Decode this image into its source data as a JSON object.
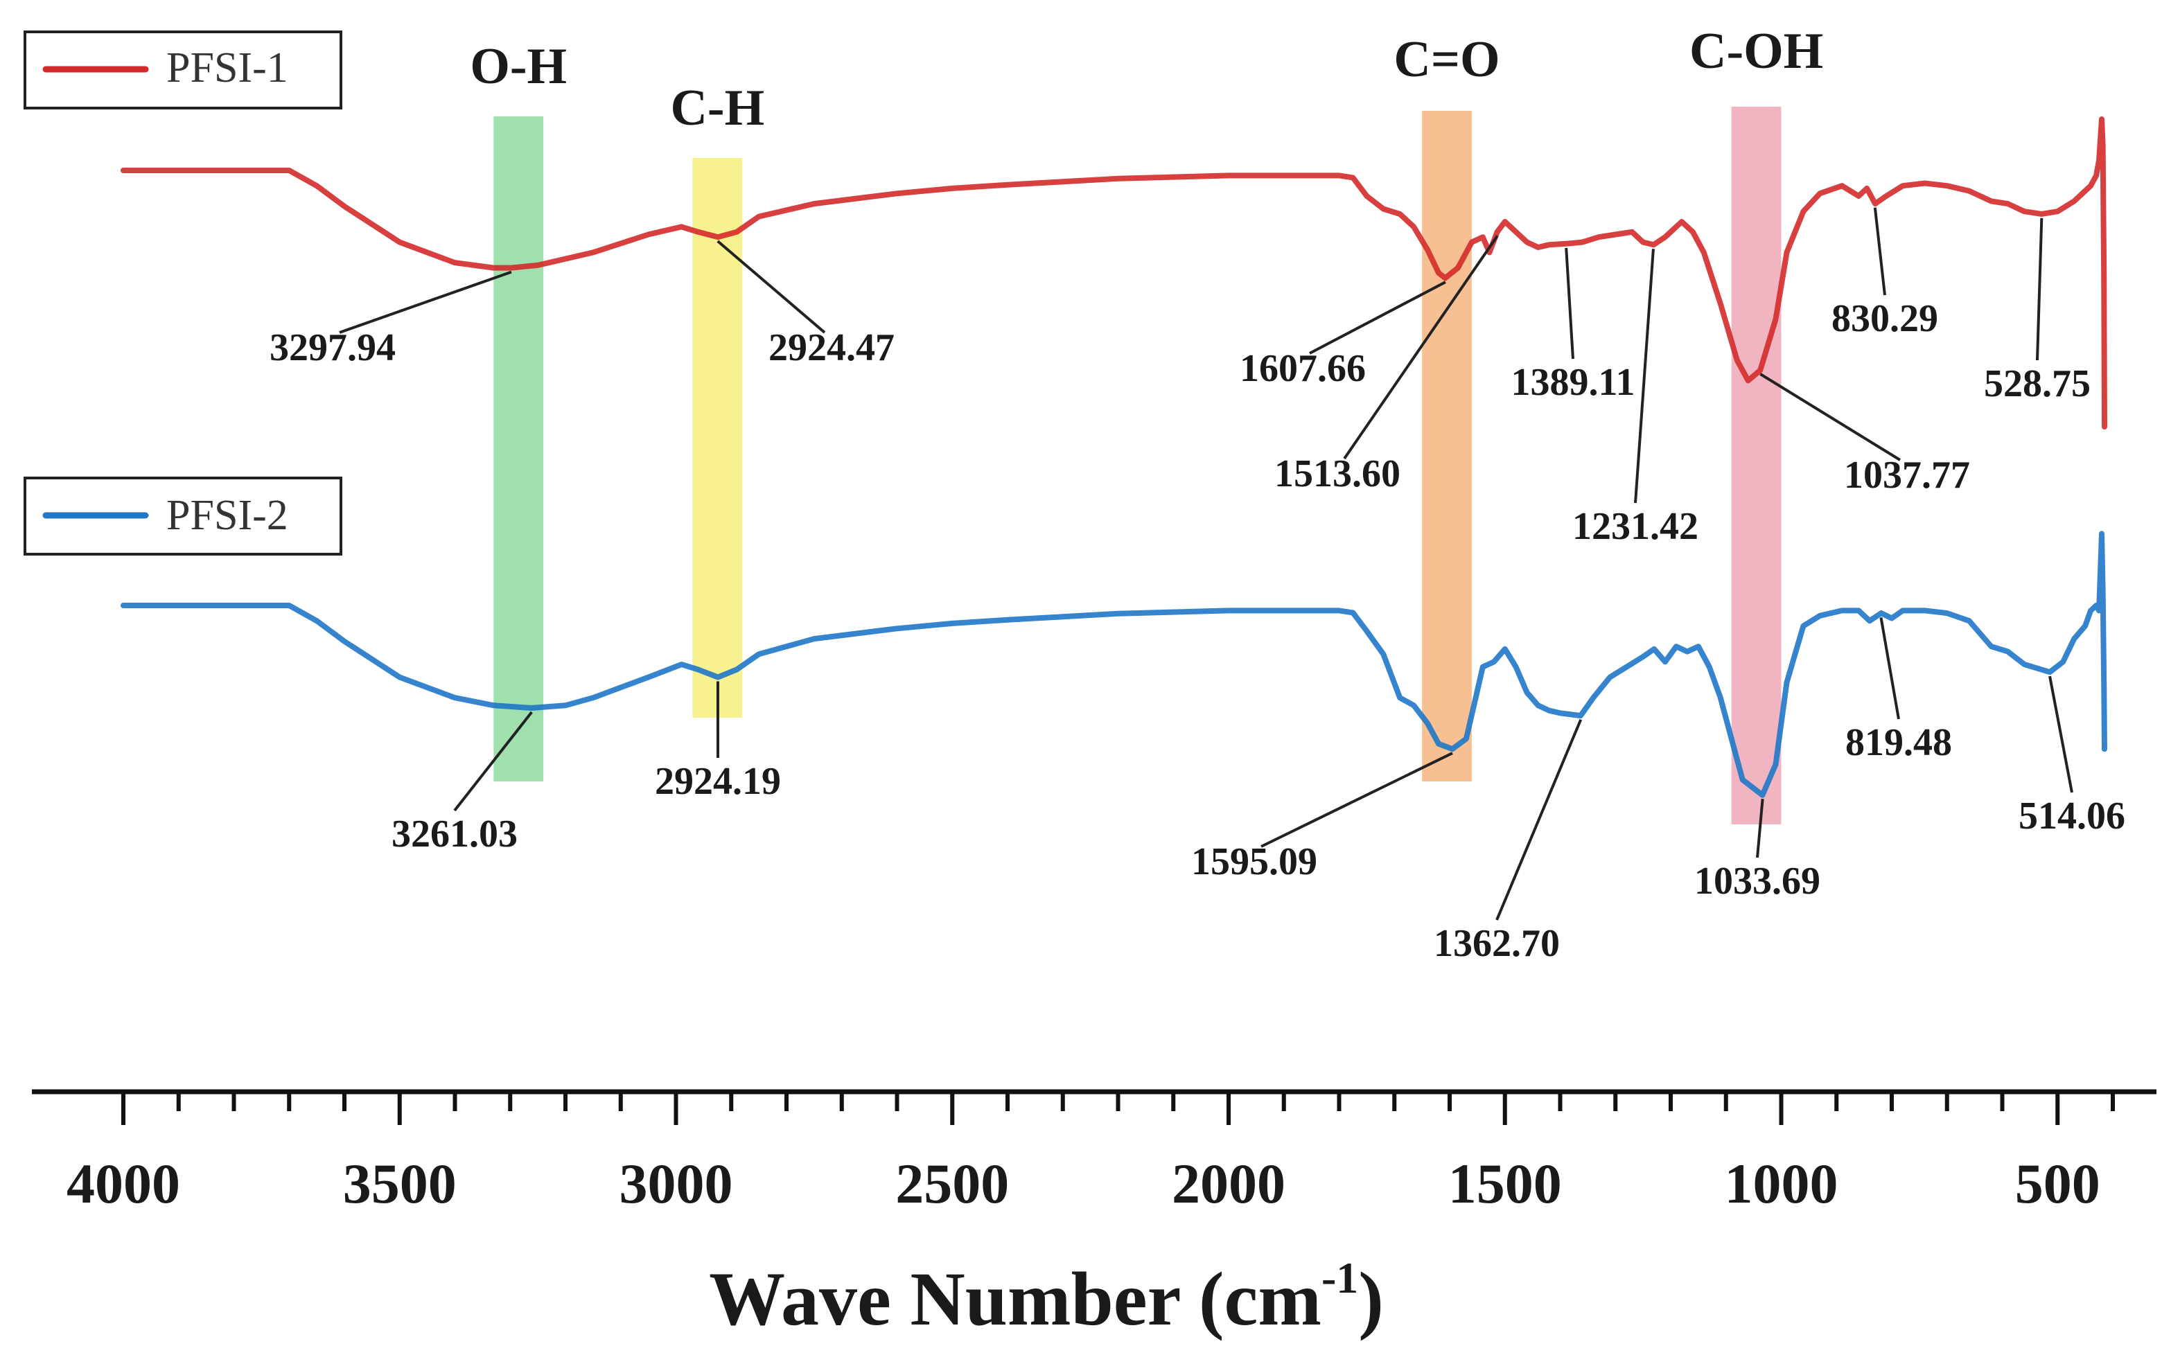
{
  "chart_data": {
    "type": "line",
    "title": "",
    "xlabel": "Wave Number (cm",
    "xlabel_sup": "-1",
    "xlabel_close": ")",
    "ylabel": "",
    "xlim": [
      4000,
      400
    ],
    "x_reversed": true,
    "grid": false,
    "x_ticks": [
      "4000",
      "3500",
      "3000",
      "2500",
      "2000",
      "1500",
      "1000",
      "500"
    ],
    "x_tick_values": [
      4000,
      3500,
      3000,
      2500,
      2000,
      1500,
      1000,
      500
    ],
    "legend_position": "top-left (one per trace)",
    "bands": [
      {
        "label": "O-H",
        "from": 3330,
        "to": 3240,
        "color": "#8fd9a0"
      },
      {
        "label": "C-H",
        "from": 2970,
        "to": 2880,
        "color": "#f6ee7c"
      },
      {
        "label": "C=O",
        "from": 1650,
        "to": 1560,
        "color": "#f4b57f"
      },
      {
        "label": "C-OH",
        "from": 1090,
        "to": 1000,
        "color": "#eda8b6"
      }
    ],
    "series": [
      {
        "name": "PFSI-1",
        "color": "#d42a2a",
        "baseline_offset": 0,
        "x": [
          4000,
          3700,
          3650,
          3600,
          3500,
          3400,
          3330,
          3298,
          3250,
          3150,
          3050,
          2990,
          2960,
          2924,
          2890,
          2850,
          2750,
          2600,
          2500,
          2400,
          2300,
          2200,
          2000,
          1800,
          1775,
          1750,
          1720,
          1690,
          1665,
          1640,
          1620,
          1608,
          1585,
          1560,
          1540,
          1528,
          1514,
          1500,
          1480,
          1460,
          1440,
          1420,
          1389,
          1360,
          1330,
          1300,
          1270,
          1250,
          1231,
          1210,
          1180,
          1160,
          1140,
          1110,
          1080,
          1060,
          1038,
          1010,
          990,
          960,
          930,
          890,
          860,
          845,
          830,
          810,
          780,
          740,
          700,
          660,
          620,
          590,
          560,
          529,
          500,
          470,
          450,
          440,
          430,
          425,
          420,
          418,
          416,
          415
        ],
        "y": [
          100,
          100,
          97,
          93,
          86,
          82,
          81,
          81,
          81.5,
          84,
          87.5,
          89,
          88,
          87,
          88,
          91,
          93.5,
          95.5,
          96.5,
          97.2,
          97.8,
          98.4,
          99,
          99,
          98.6,
          95,
          92.5,
          91.5,
          89,
          84.5,
          80,
          79,
          81,
          86,
          87,
          84,
          88,
          90,
          88,
          86,
          85,
          85.5,
          85.7,
          86,
          87,
          87.5,
          88,
          86,
          85.5,
          87,
          90,
          88,
          84,
          74,
          63,
          59,
          61,
          71,
          84,
          92,
          95.5,
          97,
          95,
          96.5,
          93.5,
          95,
          97,
          97.5,
          97,
          96,
          94,
          93.5,
          92,
          91.5,
          92,
          94,
          96,
          97,
          99,
          102,
          110,
          105,
          80,
          50
        ]
      },
      {
        "name": "PFSI-2",
        "color": "#1f77c8",
        "baseline_offset": 0,
        "x": [
          4000,
          3700,
          3650,
          3600,
          3500,
          3400,
          3330,
          3261,
          3200,
          3150,
          3050,
          2990,
          2960,
          2924,
          2890,
          2850,
          2750,
          2600,
          2500,
          2400,
          2300,
          2200,
          2000,
          1800,
          1775,
          1750,
          1720,
          1690,
          1665,
          1640,
          1620,
          1595,
          1570,
          1555,
          1540,
          1520,
          1500,
          1480,
          1460,
          1440,
          1420,
          1400,
          1363,
          1340,
          1310,
          1280,
          1250,
          1230,
          1210,
          1190,
          1170,
          1150,
          1130,
          1110,
          1090,
          1070,
          1034,
          1010,
          990,
          960,
          930,
          890,
          860,
          840,
          819,
          800,
          780,
          740,
          700,
          660,
          620,
          590,
          560,
          514,
          490,
          470,
          450,
          440,
          430,
          425,
          420,
          418,
          416,
          415
        ],
        "y": [
          100,
          100,
          97,
          93,
          86,
          82,
          80.5,
          80,
          80.5,
          82,
          86,
          88.5,
          87.5,
          86,
          87.5,
          90.5,
          93.5,
          95.5,
          96.5,
          97.2,
          97.8,
          98.4,
          99,
          99,
          98.6,
          95,
          90.5,
          82,
          80.5,
          77,
          73,
          72,
          74,
          81,
          88,
          89,
          91.5,
          88,
          83,
          80.5,
          79.5,
          79,
          78.5,
          82,
          86,
          88,
          90,
          91.5,
          89,
          92,
          91,
          92,
          88,
          82,
          74,
          66,
          63,
          69,
          85,
          96,
          98,
          99,
          99,
          97,
          98.5,
          97.5,
          99,
          99,
          98.5,
          97,
          92,
          91,
          88.5,
          87,
          89,
          93.5,
          96,
          99,
          100,
          99,
          114,
          103,
          85,
          72
        ]
      }
    ],
    "annotations": [
      {
        "series": "PFSI-1",
        "label": "3297.94",
        "x": 3297.94
      },
      {
        "series": "PFSI-1",
        "label": "2924.47",
        "x": 2924.47
      },
      {
        "series": "PFSI-1",
        "label": "1607.66",
        "x": 1607.66
      },
      {
        "series": "PFSI-1",
        "label": "1513.60",
        "x": 1513.6
      },
      {
        "series": "PFSI-1",
        "label": "1389.11",
        "x": 1389.11
      },
      {
        "series": "PFSI-1",
        "label": "1231.42",
        "x": 1231.42
      },
      {
        "series": "PFSI-1",
        "label": "1037.77",
        "x": 1037.77
      },
      {
        "series": "PFSI-1",
        "label": "830.29",
        "x": 830.29
      },
      {
        "series": "PFSI-1",
        "label": "528.75",
        "x": 528.75
      },
      {
        "series": "PFSI-2",
        "label": "3261.03",
        "x": 3261.03
      },
      {
        "series": "PFSI-2",
        "label": "2924.19",
        "x": 2924.19
      },
      {
        "series": "PFSI-2",
        "label": "1595.09",
        "x": 1595.09
      },
      {
        "series": "PFSI-2",
        "label": "1362.70",
        "x": 1362.7
      },
      {
        "series": "PFSI-2",
        "label": "1033.69",
        "x": 1033.69
      },
      {
        "series": "PFSI-2",
        "label": "819.48",
        "x": 819.48
      },
      {
        "series": "PFSI-2",
        "label": "514.06",
        "x": 514.06
      }
    ]
  }
}
